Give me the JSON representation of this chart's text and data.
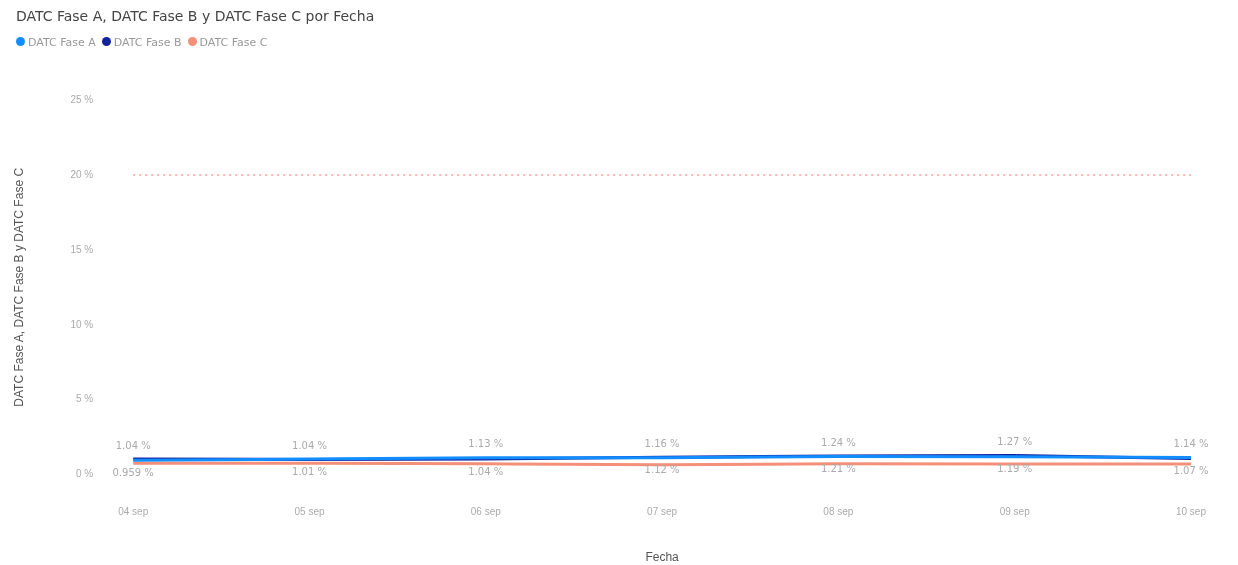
{
  "chart_data": {
    "type": "line",
    "title": "DATC Fase A, DATC Fase B y DATC Fase C por Fecha",
    "xlabel": "Fecha",
    "ylabel": "DATC Fase A, DATC Fase B y DATC Fase C",
    "categories": [
      "04 sep",
      "05 sep",
      "06 sep",
      "07 sep",
      "08 sep",
      "09 sep",
      "10 sep"
    ],
    "series": [
      {
        "name": "DATC Fase A",
        "color": "#118dff",
        "values": [
          0.959,
          1.04,
          1.13,
          1.12,
          1.21,
          1.19,
          1.14
        ],
        "value_labels": [
          "0.959 %",
          "1.04 %",
          "1.13 %",
          "1.12 %",
          "1.21 %",
          "1.19 %",
          "1.14 %"
        ]
      },
      {
        "name": "DATC Fase B",
        "color": "#12239e",
        "values": [
          1.04,
          1.01,
          1.04,
          1.16,
          1.24,
          1.27,
          1.07
        ],
        "value_labels": [
          "1.04 %",
          "1.01 %",
          "1.04 %",
          "1.16 %",
          "1.24 %",
          "1.27 %",
          "1.07 %"
        ]
      },
      {
        "name": "DATC Fase C",
        "color": "#f4907a",
        "values": [
          0.75,
          0.75,
          0.72,
          0.65,
          0.72,
          0.7,
          0.7
        ]
      }
    ],
    "ylim": [
      0,
      25
    ],
    "yticks": [
      {
        "value": 0,
        "label": "0 %"
      },
      {
        "value": 5,
        "label": "5 %"
      },
      {
        "value": 10,
        "label": "10 %"
      },
      {
        "value": 15,
        "label": "15 %"
      },
      {
        "value": 20,
        "label": "20 %"
      },
      {
        "value": 25,
        "label": "25 %"
      }
    ],
    "ref_lines": [
      {
        "axis": "y",
        "value": 20,
        "color": "#f4a0a0",
        "line_style": "dotted"
      }
    ],
    "legend": "top left",
    "grid": false,
    "marker": "none",
    "line_style": "solid"
  }
}
